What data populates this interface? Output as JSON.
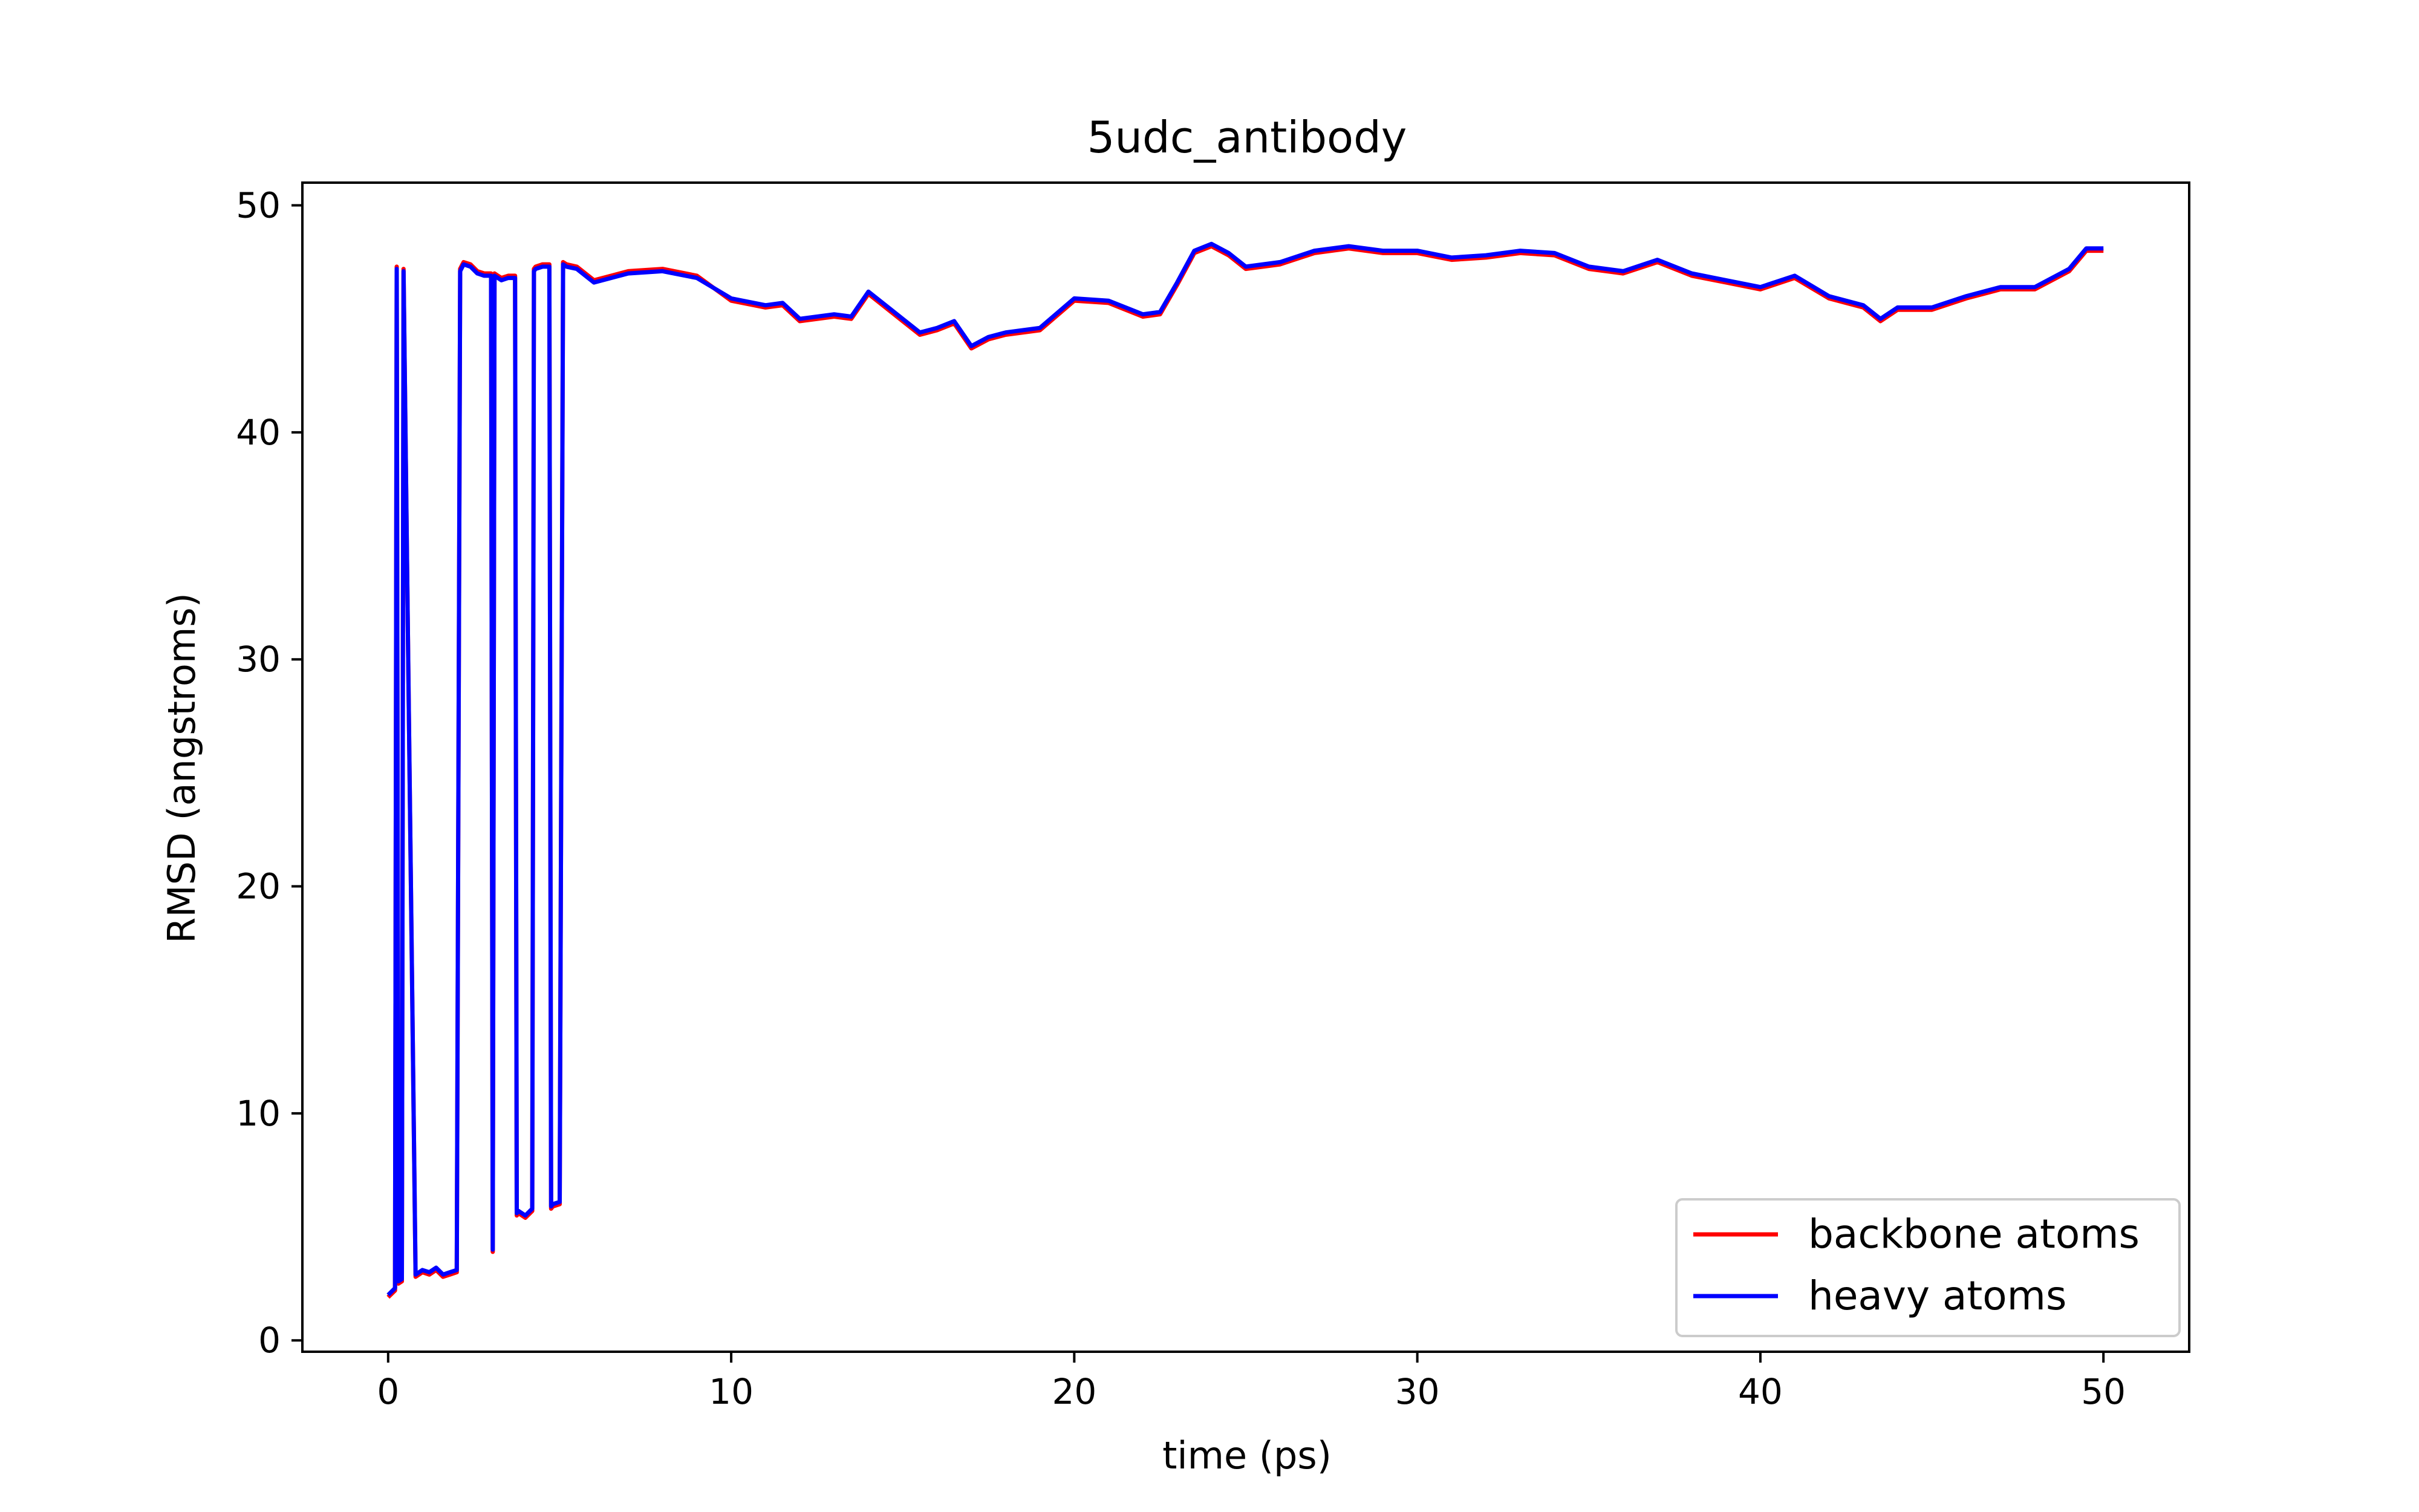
{
  "chart_data": {
    "type": "line",
    "title": "5udc_antibody",
    "xlabel": "time (ps)",
    "ylabel": "RMSD (angstroms)",
    "xlim": [
      -2.5,
      52.5
    ],
    "ylim": [
      -0.5,
      51
    ],
    "xticks": [
      0,
      10,
      20,
      30,
      40,
      50
    ],
    "yticks": [
      0,
      10,
      20,
      30,
      40,
      50
    ],
    "grid": false,
    "legend_position": "lower-right",
    "series": [
      {
        "name": "backbone atoms",
        "color": "#ff0000",
        "x": [
          0,
          0.2,
          0.25,
          0.3,
          0.4,
          0.45,
          0.8,
          1.0,
          1.2,
          1.4,
          1.6,
          1.8,
          2.0,
          2.1,
          2.2,
          2.4,
          2.6,
          2.8,
          3.0,
          3.05,
          3.1,
          3.2,
          3.3,
          3.5,
          3.7,
          3.75,
          3.8,
          4.0,
          4.2,
          4.25,
          4.3,
          4.5,
          4.7,
          4.75,
          4.8,
          5.0,
          5.1,
          5.2,
          5.5,
          6.0,
          7.0,
          8.0,
          9.0,
          10.0,
          11.0,
          11.5,
          12.0,
          13.0,
          13.5,
          14.0,
          15.0,
          15.5,
          16.0,
          16.5,
          17.0,
          17.5,
          18.0,
          19.0,
          20.0,
          21.0,
          22.0,
          22.5,
          23.0,
          23.5,
          24.0,
          24.5,
          25.0,
          26.0,
          27.0,
          28.0,
          29.0,
          30.0,
          31.0,
          32.0,
          33.0,
          34.0,
          35.0,
          36.0,
          37.0,
          38.0,
          39.0,
          40.0,
          41.0,
          42.0,
          43.0,
          43.5,
          44.0,
          45.0,
          46.0,
          47.0,
          48.0,
          49.0,
          49.5,
          50.0
        ],
        "y": [
          1.9,
          2.2,
          47.3,
          2.5,
          2.6,
          47.2,
          2.8,
          3.0,
          2.9,
          3.1,
          2.8,
          2.9,
          3.0,
          47.2,
          47.5,
          47.4,
          47.1,
          47.0,
          47.0,
          3.9,
          47.0,
          46.9,
          46.8,
          46.9,
          46.9,
          5.5,
          5.6,
          5.4,
          5.7,
          47.2,
          47.3,
          47.4,
          47.4,
          5.8,
          5.9,
          6.0,
          47.5,
          47.4,
          47.3,
          46.7,
          47.1,
          47.2,
          46.9,
          45.8,
          45.5,
          45.6,
          44.9,
          45.1,
          45.0,
          46.1,
          44.9,
          44.3,
          44.5,
          44.8,
          43.7,
          44.1,
          44.3,
          44.5,
          45.8,
          45.7,
          45.1,
          45.2,
          46.5,
          47.9,
          48.2,
          47.8,
          47.2,
          47.4,
          47.9,
          48.1,
          47.9,
          47.9,
          47.6,
          47.7,
          47.9,
          47.8,
          47.2,
          47.0,
          47.5,
          46.9,
          46.6,
          46.3,
          46.8,
          45.9,
          45.5,
          44.9,
          45.4,
          45.4,
          45.9,
          46.3,
          46.3,
          47.1,
          48.0,
          48.0
        ]
      },
      {
        "name": "heavy atoms",
        "color": "#0000ff",
        "x": [
          0,
          0.2,
          0.25,
          0.3,
          0.4,
          0.45,
          0.8,
          1.0,
          1.2,
          1.4,
          1.6,
          1.8,
          2.0,
          2.1,
          2.2,
          2.4,
          2.6,
          2.8,
          3.0,
          3.05,
          3.1,
          3.2,
          3.3,
          3.5,
          3.7,
          3.75,
          3.8,
          4.0,
          4.2,
          4.25,
          4.3,
          4.5,
          4.7,
          4.75,
          4.8,
          5.0,
          5.1,
          5.2,
          5.5,
          6.0,
          7.0,
          8.0,
          9.0,
          10.0,
          11.0,
          11.5,
          12.0,
          13.0,
          13.5,
          14.0,
          15.0,
          15.5,
          16.0,
          16.5,
          17.0,
          17.5,
          18.0,
          19.0,
          20.0,
          21.0,
          22.0,
          22.5,
          23.0,
          23.5,
          24.0,
          24.5,
          25.0,
          26.0,
          27.0,
          28.0,
          29.0,
          30.0,
          31.0,
          32.0,
          33.0,
          34.0,
          35.0,
          36.0,
          37.0,
          38.0,
          39.0,
          40.0,
          41.0,
          42.0,
          43.0,
          43.5,
          44.0,
          45.0,
          46.0,
          47.0,
          48.0,
          49.0,
          49.5,
          50.0
        ],
        "y": [
          2.0,
          2.3,
          47.2,
          2.6,
          2.7,
          47.1,
          2.9,
          3.1,
          3.0,
          3.2,
          2.9,
          3.0,
          3.1,
          47.1,
          47.4,
          47.3,
          47.0,
          46.9,
          46.9,
          4.0,
          46.9,
          46.8,
          46.7,
          46.8,
          46.8,
          5.6,
          5.7,
          5.5,
          5.8,
          47.1,
          47.2,
          47.3,
          47.3,
          5.9,
          6.0,
          6.1,
          47.4,
          47.3,
          47.2,
          46.6,
          47.0,
          47.1,
          46.8,
          45.9,
          45.6,
          45.7,
          45.0,
          45.2,
          45.1,
          46.2,
          45.0,
          44.4,
          44.6,
          44.9,
          43.8,
          44.2,
          44.4,
          44.6,
          45.9,
          45.8,
          45.2,
          45.3,
          46.6,
          48.0,
          48.3,
          47.9,
          47.3,
          47.5,
          48.0,
          48.2,
          48.0,
          48.0,
          47.7,
          47.8,
          48.0,
          47.9,
          47.3,
          47.1,
          47.6,
          47.0,
          46.7,
          46.4,
          46.9,
          46.0,
          45.6,
          45.0,
          45.5,
          45.5,
          46.0,
          46.4,
          46.4,
          47.2,
          48.1,
          48.1
        ]
      }
    ]
  }
}
